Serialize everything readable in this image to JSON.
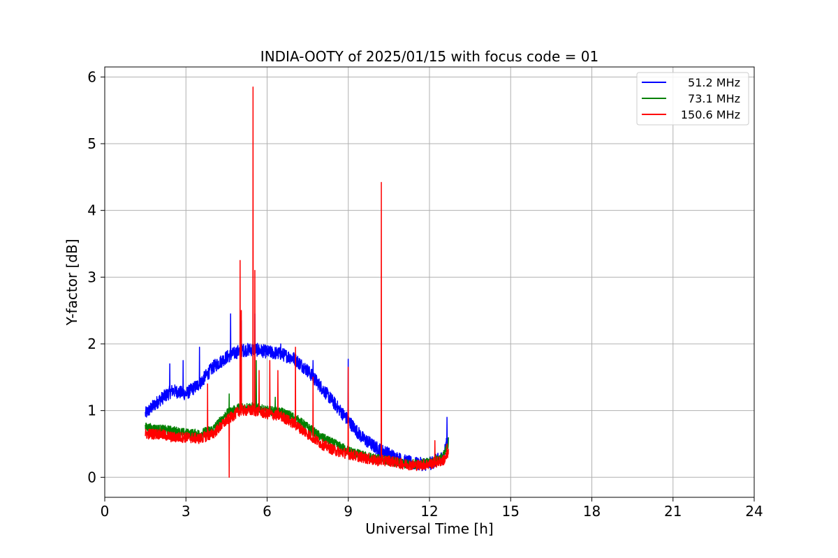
{
  "chart_data": {
    "type": "line",
    "title": "INDIA-OOTY of 2025/01/15 with focus code = 01",
    "xlabel": "Universal Time [h]",
    "ylabel": "Y-factor [dB]",
    "xlim": [
      0,
      24
    ],
    "ylim": [
      -0.3,
      6.15
    ],
    "xticks": [
      0,
      3,
      6,
      9,
      12,
      15,
      18,
      21,
      24
    ],
    "xtick_labels": [
      "0",
      "3",
      "6",
      "9",
      "12",
      "15",
      "18",
      "21",
      "24"
    ],
    "yticks": [
      0,
      1,
      2,
      3,
      4,
      5,
      6
    ],
    "ytick_labels": [
      "0",
      "1",
      "2",
      "3",
      "4",
      "5",
      "6"
    ],
    "grid": true,
    "legend_position": "top-right",
    "series": [
      {
        "name": "51.2 MHz",
        "color": "#0000ff",
        "noise": 0.1,
        "x": [
          1.5,
          2.0,
          2.5,
          3.0,
          3.5,
          4.0,
          4.5,
          5.0,
          5.5,
          6.0,
          6.5,
          7.0,
          7.5,
          8.0,
          8.5,
          9.0,
          9.5,
          10.0,
          10.5,
          11.0,
          11.5,
          12.0,
          12.5,
          12.7
        ],
        "y": [
          0.95,
          1.15,
          1.3,
          1.25,
          1.4,
          1.65,
          1.8,
          1.9,
          1.92,
          1.88,
          1.85,
          1.78,
          1.6,
          1.35,
          1.1,
          0.85,
          0.6,
          0.45,
          0.35,
          0.25,
          0.2,
          0.2,
          0.3,
          0.6
        ],
        "spikes": [
          [
            2.4,
            1.7
          ],
          [
            2.9,
            1.75
          ],
          [
            3.5,
            1.95
          ],
          [
            4.65,
            2.45
          ],
          [
            5.05,
            2.35
          ],
          [
            5.55,
            2.45
          ],
          [
            6.5,
            2.0
          ],
          [
            7.7,
            1.75
          ],
          [
            9.0,
            1.77
          ],
          [
            12.65,
            0.9
          ]
        ]
      },
      {
        "name": "73.1 MHz",
        "color": "#008000",
        "noise": 0.07,
        "x": [
          1.5,
          2.0,
          2.5,
          3.0,
          3.5,
          4.0,
          4.5,
          5.0,
          5.5,
          6.0,
          6.5,
          7.0,
          7.5,
          8.0,
          8.5,
          9.0,
          9.5,
          10.0,
          10.5,
          11.0,
          11.5,
          12.0,
          12.5,
          12.7
        ],
        "y": [
          0.75,
          0.72,
          0.7,
          0.66,
          0.65,
          0.72,
          0.95,
          1.05,
          1.05,
          1.0,
          0.98,
          0.9,
          0.75,
          0.6,
          0.5,
          0.4,
          0.33,
          0.28,
          0.25,
          0.2,
          0.2,
          0.22,
          0.3,
          0.5
        ],
        "spikes": [
          [
            4.6,
            1.25
          ],
          [
            5.6,
            1.75
          ],
          [
            6.3,
            1.2
          ],
          [
            12.7,
            0.6
          ]
        ]
      },
      {
        "name": "150.6 MHz",
        "color": "#ff0000",
        "noise": 0.08,
        "x": [
          1.5,
          2.0,
          2.5,
          3.0,
          3.5,
          4.0,
          4.5,
          5.0,
          5.5,
          6.0,
          6.5,
          7.0,
          7.5,
          8.0,
          8.5,
          9.0,
          9.5,
          10.0,
          10.5,
          11.0,
          11.5,
          12.0,
          12.5,
          12.7
        ],
        "y": [
          0.65,
          0.65,
          0.6,
          0.6,
          0.58,
          0.65,
          0.85,
          1.0,
          1.0,
          0.95,
          0.92,
          0.8,
          0.65,
          0.5,
          0.4,
          0.35,
          0.3,
          0.25,
          0.25,
          0.2,
          0.18,
          0.2,
          0.25,
          0.35
        ],
        "spikes": [
          [
            3.8,
            1.4
          ],
          [
            4.6,
            0.0
          ],
          [
            5.0,
            3.25
          ],
          [
            5.05,
            2.5
          ],
          [
            5.48,
            5.85
          ],
          [
            5.55,
            3.1
          ],
          [
            5.7,
            1.6
          ],
          [
            6.1,
            1.75
          ],
          [
            6.4,
            1.6
          ],
          [
            7.05,
            1.95
          ],
          [
            7.7,
            1.5
          ],
          [
            9.0,
            1.65
          ],
          [
            10.22,
            4.42
          ],
          [
            12.2,
            0.55
          ],
          [
            12.65,
            0.5
          ]
        ]
      }
    ]
  }
}
